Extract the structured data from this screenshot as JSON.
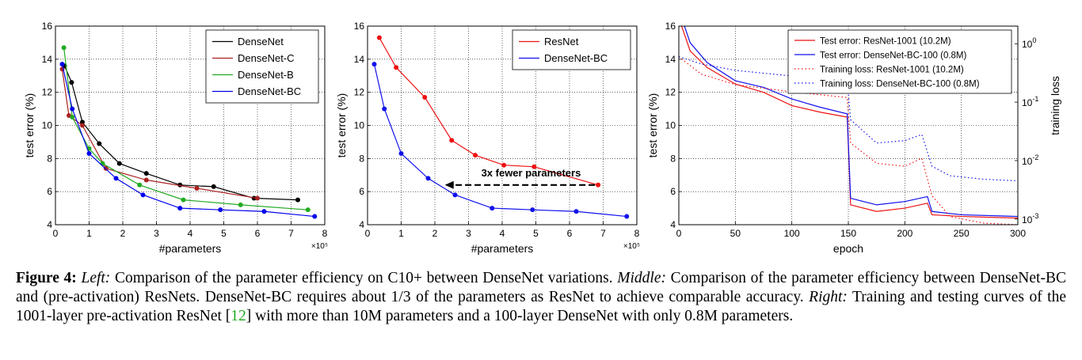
{
  "chart_data": [
    {
      "type": "line",
      "xlabel": "#parameters",
      "ylabel": "test error (%)",
      "x_multiplier_label": "×10⁵",
      "xlim": [
        0,
        8
      ],
      "ylim": [
        4,
        16
      ],
      "xticks": [
        "0",
        "1",
        "2",
        "3",
        "4",
        "5",
        "6",
        "7",
        "8"
      ],
      "yticks": [
        "4",
        "6",
        "8",
        "10",
        "12",
        "14",
        "16"
      ],
      "grid": true,
      "legend_position": "top-right",
      "series": [
        {
          "name": "DenseNet",
          "color": "#000000",
          "x": [
            0.27,
            0.48,
            0.8,
            1.3,
            1.9,
            2.7,
            3.7,
            4.7,
            5.9,
            7.2
          ],
          "y": [
            13.6,
            12.6,
            10.2,
            8.9,
            7.7,
            7.1,
            6.4,
            6.3,
            5.6,
            5.5
          ]
        },
        {
          "name": "DenseNet-C",
          "color": "#aa2222",
          "x": [
            0.2,
            0.4,
            0.8,
            1.5,
            2.7,
            4.2,
            6.0
          ],
          "y": [
            13.4,
            10.6,
            10.0,
            7.4,
            6.7,
            6.2,
            5.6
          ]
        },
        {
          "name": "DenseNet-B",
          "color": "#22aa22",
          "x": [
            0.25,
            0.5,
            1.0,
            1.4,
            2.5,
            3.8,
            5.5,
            7.5
          ],
          "y": [
            14.7,
            10.5,
            8.6,
            7.7,
            6.4,
            5.5,
            5.2,
            4.9
          ]
        },
        {
          "name": "DenseNet-BC",
          "color": "#0000ee",
          "x": [
            0.2,
            0.5,
            1.0,
            1.8,
            2.6,
            3.7,
            4.9,
            6.2,
            7.7
          ],
          "y": [
            13.7,
            11.0,
            8.3,
            6.8,
            5.8,
            5.0,
            4.9,
            4.8,
            4.5
          ]
        }
      ]
    },
    {
      "type": "line",
      "xlabel": "#parameters",
      "ylabel": "test error (%)",
      "x_multiplier_label": "×10⁵",
      "xlim": [
        0,
        8
      ],
      "ylim": [
        4,
        16
      ],
      "xticks": [
        "0",
        "1",
        "2",
        "3",
        "4",
        "5",
        "6",
        "7",
        "8"
      ],
      "yticks": [
        "4",
        "6",
        "8",
        "10",
        "12",
        "14",
        "16"
      ],
      "grid": true,
      "legend_position": "top-right",
      "series": [
        {
          "name": "ResNet",
          "color": "#ee1111",
          "x": [
            0.35,
            0.85,
            1.7,
            2.5,
            3.2,
            4.05,
            4.95,
            6.85
          ],
          "y": [
            15.3,
            13.5,
            11.7,
            9.1,
            8.2,
            7.6,
            7.5,
            6.4
          ]
        },
        {
          "name": "DenseNet-BC",
          "color": "#1111ee",
          "x": [
            0.2,
            0.5,
            1.0,
            1.8,
            2.6,
            3.7,
            4.9,
            6.2,
            7.7
          ],
          "y": [
            13.7,
            11.0,
            8.3,
            6.8,
            5.8,
            5.0,
            4.9,
            4.8,
            4.5
          ]
        }
      ],
      "annotation": {
        "text": "3x fewer parameters",
        "from": [
          6.85,
          6.4
        ],
        "to": [
          2.3,
          6.4
        ]
      }
    },
    {
      "type": "line",
      "xlabel": "epoch",
      "ylabel": "test error (%)",
      "y2label": "training loss",
      "xlim": [
        0,
        300
      ],
      "ylim": [
        4,
        16
      ],
      "y2lim": [
        0.0008,
        2
      ],
      "y2scale": "log",
      "xticks": [
        "0",
        "50",
        "100",
        "150",
        "200",
        "250",
        "300"
      ],
      "yticks": [
        "4",
        "6",
        "8",
        "10",
        "12",
        "14",
        "16"
      ],
      "y2ticks": [
        {
          "base": "10",
          "exp": "0",
          "value": 1
        },
        {
          "base": "10",
          "exp": "-1",
          "value": 0.1
        },
        {
          "base": "10",
          "exp": "-2",
          "value": 0.01
        },
        {
          "base": "10",
          "exp": "-3",
          "value": 0.001
        }
      ],
      "grid": true,
      "legend_position": "top-right",
      "series": [
        {
          "name": "Test error: ResNet-1001 (10.2M)",
          "color": "#ee1111",
          "style": "solid",
          "axis": "left",
          "x": [
            0,
            10,
            25,
            50,
            75,
            100,
            125,
            149,
            152,
            175,
            200,
            220,
            224,
            250,
            300
          ],
          "y": [
            16.5,
            14.5,
            13.5,
            12.5,
            12.0,
            11.2,
            10.8,
            10.5,
            5.2,
            4.8,
            5.0,
            5.3,
            4.6,
            4.5,
            4.4
          ]
        },
        {
          "name": "Test error: DenseNet-BC-100 (0.8M)",
          "color": "#1111ee",
          "style": "solid",
          "axis": "left",
          "x": [
            0,
            10,
            25,
            50,
            75,
            100,
            125,
            149,
            152,
            175,
            200,
            220,
            224,
            250,
            300
          ],
          "y": [
            17.0,
            15.0,
            13.8,
            12.7,
            12.3,
            11.6,
            11.1,
            10.7,
            5.6,
            5.2,
            5.4,
            5.7,
            4.8,
            4.6,
            4.5
          ]
        },
        {
          "name": "Training loss: ResNet-1001 (10.2M)",
          "color": "#ee1111",
          "style": "dotted",
          "axis": "right",
          "x": [
            0,
            20,
            50,
            100,
            149,
            152,
            175,
            200,
            215,
            224,
            240,
            270,
            300
          ],
          "y": [
            0.6,
            0.3,
            0.2,
            0.15,
            0.12,
            0.02,
            0.009,
            0.008,
            0.011,
            0.0025,
            0.0011,
            0.00085,
            0.0008
          ]
        },
        {
          "name": "Training loss: DenseNet-BC-100 (0.8M)",
          "color": "#1111ee",
          "style": "dotted",
          "axis": "right",
          "x": [
            0,
            20,
            50,
            100,
            149,
            152,
            175,
            200,
            215,
            224,
            240,
            270,
            300
          ],
          "y": [
            0.6,
            0.45,
            0.35,
            0.28,
            0.24,
            0.05,
            0.02,
            0.022,
            0.028,
            0.008,
            0.0055,
            0.0048,
            0.0045
          ]
        }
      ]
    }
  ],
  "caption": {
    "label": "Figure 4:",
    "left_label": "Left:",
    "left_text": " Comparison of the parameter efficiency on C10+ between DenseNet variations. ",
    "middle_label": "Middle:",
    "middle_text": " Comparison of the parameter efficiency between DenseNet-BC and (pre-activation) ResNets. DenseNet-BC requires about 1/3 of the parameters as ResNet to achieve comparable accuracy. ",
    "right_label": "Right:",
    "right_text_1": " Training and testing curves of the 1001-layer pre-activation ResNet [",
    "ref": "12",
    "right_text_2": "] with more than 10M parameters and a 100-layer DenseNet with only 0.8M parameters."
  }
}
